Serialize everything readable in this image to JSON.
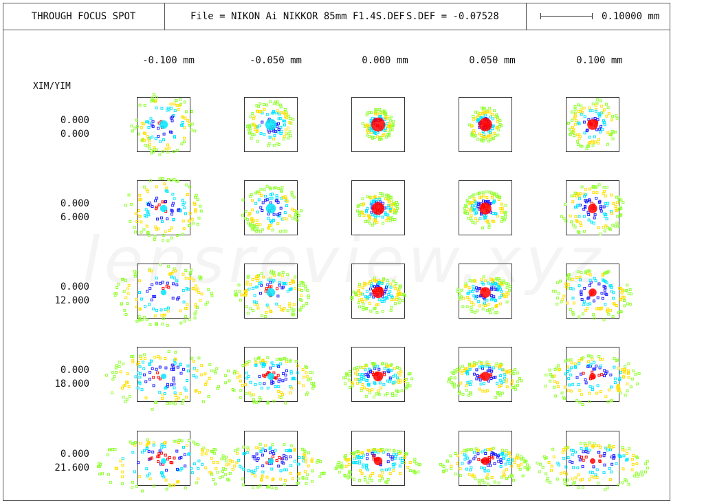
{
  "header": {
    "title": "THROUGH FOCUS SPOT",
    "file_text": "File = NIKON Ai NIKKOR 85mm F1.4S.DEF",
    "field_text": "S.DEF = -0.07528",
    "scale_label": "0.10000 mm"
  },
  "axis_header": "XIM/YIM",
  "columns": [
    "-0.100  mm",
    "-0.050  mm",
    "0.000  mm",
    "0.050  mm",
    "0.100  mm"
  ],
  "rows": [
    {
      "x": "0.000",
      "y": "0.000"
    },
    {
      "x": "0.000",
      "y": "6.000"
    },
    {
      "x": "0.000",
      "y": "12.000"
    },
    {
      "x": "0.000",
      "y": "18.000"
    },
    {
      "x": "0.000",
      "y": "21.600"
    }
  ],
  "watermark": "lensreview.xyz",
  "colors": {
    "wavelength_1": "#ff0000",
    "wavelength_2": "#2020ff",
    "wavelength_3": "#00e5ff",
    "wavelength_4": "#ffe000",
    "wavelength_5": "#90ff30",
    "frame": "#333333"
  }
}
